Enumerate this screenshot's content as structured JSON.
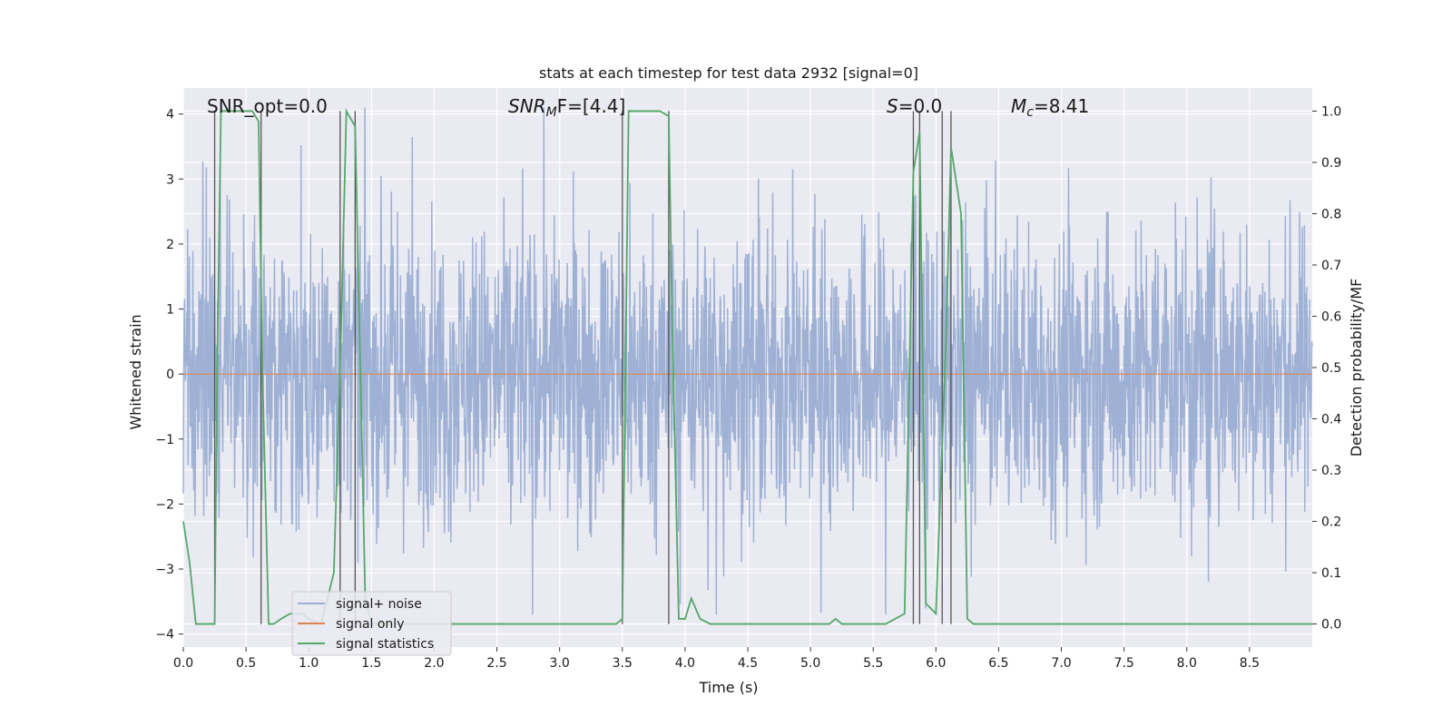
{
  "chart_data": {
    "type": "line",
    "title": "stats at each timestep for test data 2932 [signal=0]",
    "xlabel": "Time (s)",
    "ylabel_left": "Whitened strain",
    "ylabel_right": "Detection probability/MF",
    "xlim": [
      0.0,
      9.0
    ],
    "ylim_left": [
      -4.2,
      4.4
    ],
    "ylim_right": [
      -0.045,
      1.045
    ],
    "x_ticks": [
      "0.0",
      "0.5",
      "1.0",
      "1.5",
      "2.0",
      "2.5",
      "3.0",
      "3.5",
      "4.0",
      "4.5",
      "5.0",
      "5.5",
      "6.0",
      "6.5",
      "7.0",
      "7.5",
      "8.0",
      "8.5"
    ],
    "y_ticks_left": [
      "4",
      "3",
      "2",
      "1",
      "0",
      "-1",
      "-2",
      "-3",
      "-4"
    ],
    "y_ticks_right": [
      "1.0",
      "0.9",
      "0.8",
      "0.7",
      "0.6",
      "0.5",
      "0.4",
      "0.3",
      "0.2",
      "0.1",
      "0.0"
    ],
    "grid": true,
    "legend_position": "lower-left",
    "annotations": {
      "snr_opt": "SNR_opt=0.0",
      "snr_mf": "SNR",
      "snr_mf_sub": "M",
      "snr_mf_rest": "F=[4.4]",
      "s": "S",
      "s_rest": "=0.0",
      "mc": "M",
      "mc_sub": "c",
      "mc_rest": "=8.41"
    },
    "series": [
      {
        "name": "signal+ noise",
        "color": "#9aaed3",
        "axis": "left",
        "description_values": "whitened strain noise, roughly uniform amplitude",
        "amplitude_envelope": [
          -3.7,
          4.1
        ]
      },
      {
        "name": "signal only",
        "color": "#dd8452",
        "axis": "left",
        "x": [
          0.0,
          9.0
        ],
        "y": [
          0.0,
          0.0
        ]
      },
      {
        "name": "signal statistics",
        "color": "#55a868",
        "axis": "right",
        "x": [
          0.0,
          0.05,
          0.1,
          0.2,
          0.25,
          0.27,
          0.3,
          0.35,
          0.4,
          0.5,
          0.55,
          0.6,
          0.63,
          0.68,
          0.72,
          0.78,
          0.85,
          0.95,
          1.0,
          1.1,
          1.2,
          1.25,
          1.3,
          1.37,
          1.42,
          1.45,
          1.5,
          2.0,
          2.5,
          3.0,
          3.45,
          3.5,
          3.55,
          3.6,
          3.8,
          3.87,
          3.9,
          3.95,
          4.0,
          4.05,
          4.12,
          4.2,
          4.5,
          5.0,
          5.15,
          5.2,
          5.25,
          5.3,
          5.6,
          5.75,
          5.82,
          5.87,
          5.92,
          6.0,
          6.08,
          6.12,
          6.2,
          6.25,
          6.3,
          7.0,
          8.0,
          9.0
        ],
        "y": [
          0.2,
          0.12,
          0.0,
          0.0,
          0.0,
          0.5,
          1.0,
          1.0,
          1.0,
          1.0,
          1.0,
          0.98,
          0.5,
          0.0,
          0.0,
          0.01,
          0.02,
          0.02,
          0.01,
          0.0,
          0.1,
          0.5,
          1.0,
          0.97,
          0.4,
          0.05,
          0.0,
          0.0,
          0.0,
          0.0,
          0.0,
          0.01,
          1.0,
          1.0,
          1.0,
          0.99,
          0.55,
          0.01,
          0.01,
          0.05,
          0.01,
          0.0,
          0.0,
          0.0,
          0.0,
          0.01,
          0.0,
          0.0,
          0.0,
          0.02,
          0.88,
          0.96,
          0.04,
          0.02,
          0.55,
          0.93,
          0.8,
          0.01,
          0.0,
          0.0,
          0.0,
          0.0
        ]
      }
    ],
    "vertical_markers": [
      0.25,
      0.62,
      1.25,
      1.37,
      3.5,
      3.87,
      5.82,
      5.87,
      6.05,
      6.12
    ]
  }
}
